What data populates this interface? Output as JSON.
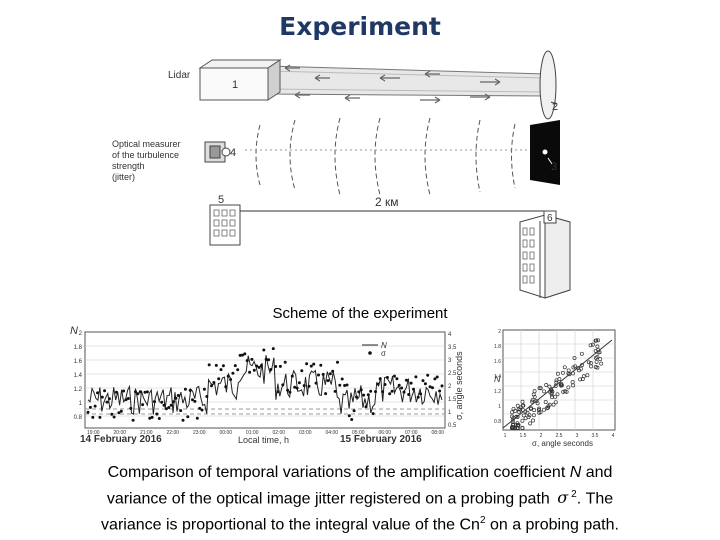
{
  "title": "Experiment",
  "scheme": {
    "lidar_label": "Lidar",
    "optical_label_lines": [
      "Optical measurer",
      "of the turbulence",
      "strength",
      "(jitter)"
    ],
    "distance_label": "2 км",
    "numbers": [
      "1",
      "2",
      "3",
      "4",
      "5",
      "6"
    ],
    "caption": "Scheme of the experiment"
  },
  "timeseries": {
    "y_axis_label": "N",
    "y2_axis_label": "σ, angle seconds",
    "y_ticks": [
      "2",
      "1.8",
      "1.6",
      "1.4",
      "1.2",
      "1",
      "0.8"
    ],
    "y2_ticks": [
      "4",
      "3.5",
      "3",
      "2.5",
      "2",
      "1.5",
      "1",
      "0.5"
    ],
    "x_ticks": [
      "19:00",
      "20:00",
      "21:00",
      "22:00",
      "23:00",
      "00:00",
      "01:00",
      "02:00",
      "03:00",
      "04:00",
      "05:00",
      "06:00",
      "07:00",
      "08:00"
    ],
    "legend": [
      "N",
      "σ"
    ],
    "date_left": "14 February 2016",
    "x_label": "Local time, h",
    "date_right": "15 February 2016"
  },
  "scatter": {
    "y_label": "N",
    "x_label": "σ, angle seconds",
    "y_ticks": [
      "2",
      "1.8",
      "1.6",
      "1.4",
      "1.2",
      "1",
      "0.8"
    ],
    "x_ticks": [
      "1",
      "1.5",
      "2",
      "2.5",
      "3",
      "3.5",
      "4"
    ]
  },
  "caption": {
    "line1_a": "Comparison of temporal variations of the amplification coefficient ",
    "line1_N": "N",
    "line1_b": " and",
    "line2_a": "variance of the optical image jitter registered on a probing path ",
    "sigma": "σ",
    "sigma_sup": "2",
    "line2_b": ". The",
    "line3_a": "variance is proportional to the integral value of the Cn",
    "cn_sup": "2",
    "line3_b": " on a probing path."
  }
}
